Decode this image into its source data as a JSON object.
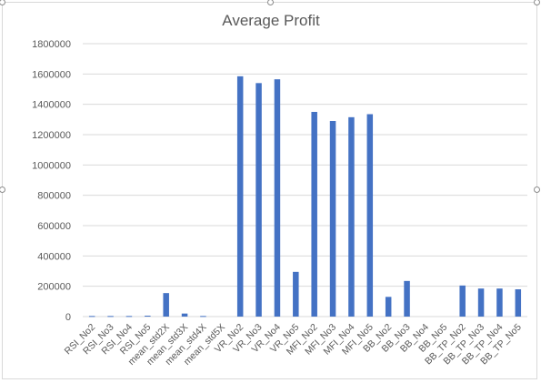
{
  "chart_data": {
    "type": "bar",
    "title": "Average Profit",
    "xlabel": "",
    "ylabel": "",
    "ylim": [
      0,
      1800000
    ],
    "yticks": [
      0,
      200000,
      400000,
      600000,
      800000,
      1000000,
      1200000,
      1400000,
      1600000,
      1800000
    ],
    "grid": "horizontal",
    "legend": "none",
    "bar_color": "#4472c4",
    "categories": [
      "RSI_No2",
      "RSI_No3",
      "RSI_No4",
      "RSI_No5",
      "mean_std2X",
      "mean_std3X",
      "mean_std4X",
      "mean_std5X",
      "VR_No2",
      "VR_No3",
      "VR_No4",
      "VR_No5",
      "MFI_No2",
      "MFI_No3",
      "MFI_No4",
      "MFI_No5",
      "BB_No2",
      "BB_No3",
      "BB_No4",
      "BB_No5",
      "BB_TP_No2",
      "BB_TP_No3",
      "BB_TP_No4",
      "BB_TP_No5"
    ],
    "values": [
      4000,
      4000,
      4000,
      6000,
      155000,
      20000,
      4000,
      0,
      1585000,
      1540000,
      1565000,
      295000,
      1350000,
      1290000,
      1315000,
      1335000,
      130000,
      235000,
      0,
      0,
      205000,
      185000,
      185000,
      180000
    ]
  }
}
